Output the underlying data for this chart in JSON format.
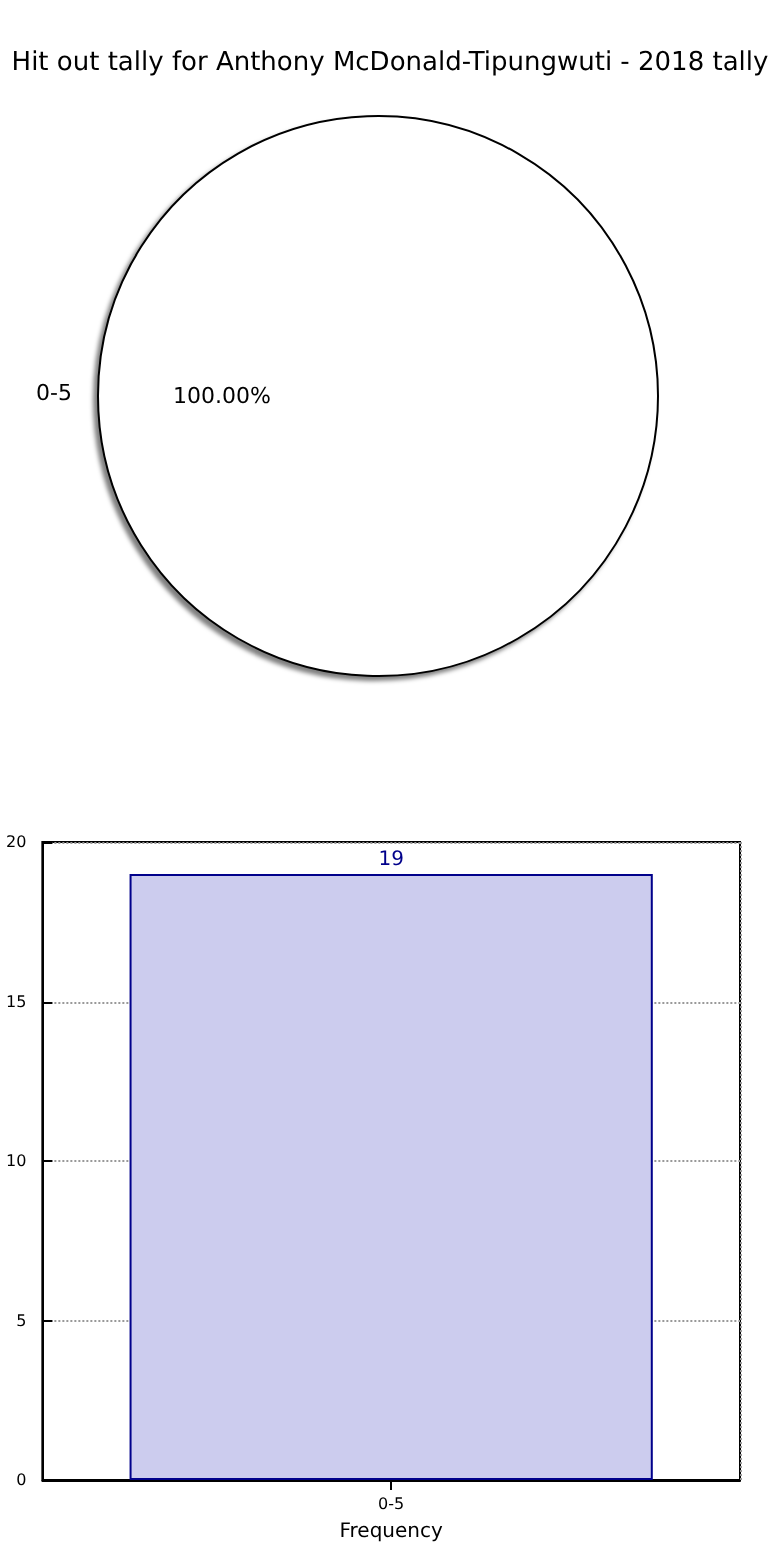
{
  "chart_data": [
    {
      "type": "pie",
      "title": "Hit out tally for Anthony McDonald-Tipungwuti - 2018 tally",
      "categories": [
        "0-5"
      ],
      "values": [
        100
      ],
      "colors": [
        "#ffffff"
      ],
      "value_labels": [
        "100.00%"
      ]
    },
    {
      "type": "bar",
      "categories": [
        "0-5"
      ],
      "values": [
        19
      ],
      "color": "#ccccee",
      "xlabel": "Frequency",
      "ylim": [
        0,
        20
      ],
      "yticks": [
        0,
        5,
        10,
        15,
        20
      ],
      "grid": true,
      "data_labels": true
    }
  ]
}
